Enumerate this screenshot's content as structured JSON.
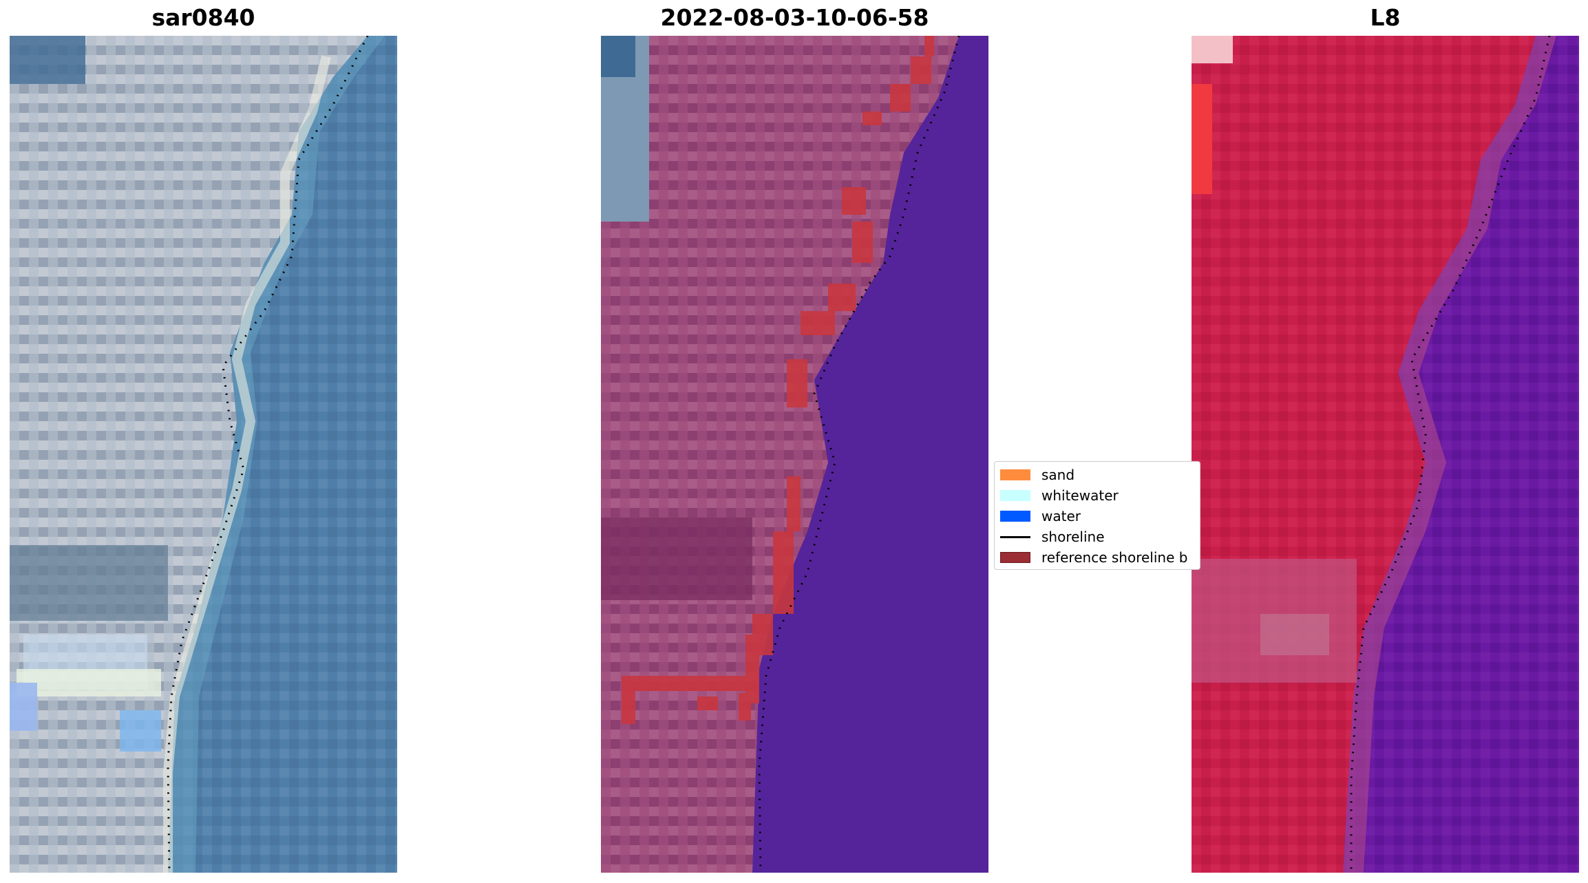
{
  "titles": {
    "left": "sar0840",
    "middle": "2022-08-03-10-06-58",
    "right": "L8"
  },
  "legend": {
    "items": [
      {
        "label": "sand",
        "color": "#ff8c3c",
        "kind": "patch"
      },
      {
        "label": "whitewater",
        "color": "#c8ffff",
        "kind": "patch"
      },
      {
        "label": "water",
        "color": "#005aff",
        "kind": "patch"
      },
      {
        "label": "shoreline",
        "color": "#000000",
        "kind": "line"
      },
      {
        "label": "reference shoreline b",
        "color": "#9b2d35",
        "kind": "patch"
      }
    ]
  },
  "colors": {
    "rgb_land": "#a9b4c2",
    "rgb_sea": "#4f7ea8",
    "classified_land": "#9a4a7a",
    "classified_sea": "#55249a",
    "reference_buffer": "#c8373f",
    "nir_land": "#c81e4a",
    "nir_sea": "#6a1aa2",
    "shoreline": "#000000"
  }
}
